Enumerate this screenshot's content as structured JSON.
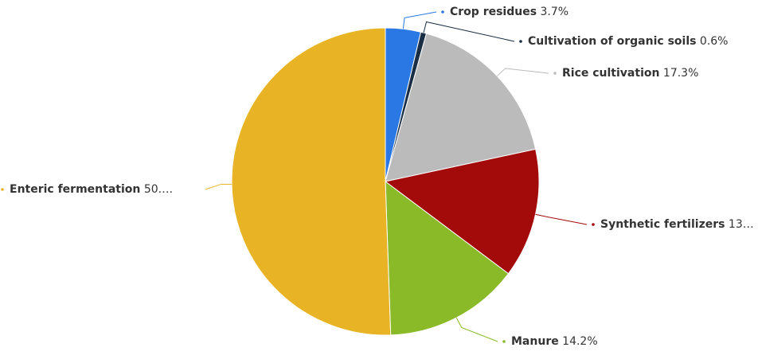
{
  "chart_data": {
    "type": "pie",
    "categories": [
      "Crop residues",
      "Cultivation of organic soils",
      "Rice cultivation",
      "Synthetic fertilizers",
      "Manure",
      "Enteric fermentation"
    ],
    "values": [
      3.7,
      0.6,
      17.3,
      13.6,
      14.2,
      50.5
    ],
    "value_labels": [
      "3.7%",
      "0.6%",
      "17.3%",
      "13…",
      "14.2%",
      "50.…"
    ],
    "colors": [
      "#2a78e4",
      "#1a2e45",
      "#bbbbbb",
      "#a30b0b",
      "#8aba27",
      "#e8b425"
    ]
  }
}
